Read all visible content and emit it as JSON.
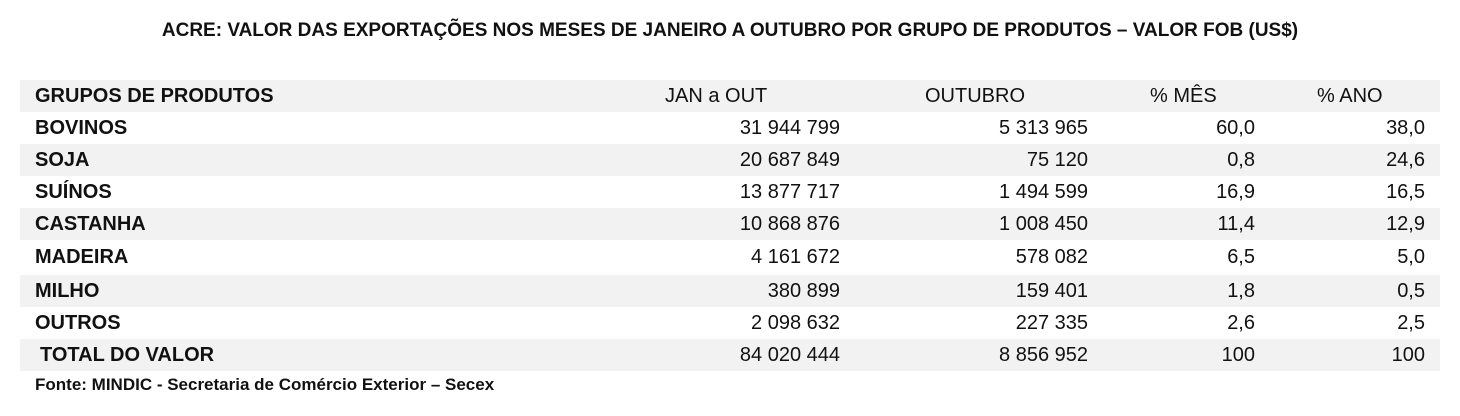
{
  "title": "ACRE: VALOR DAS EXPORTAÇÕES NOS MESES DE JANEIRO A OUTUBRO POR GRUPO DE PRODUTOS – VALOR FOB (US$)",
  "table": {
    "header": [
      "GRUPOS DE PRODUTOS",
      "JAN a OUT",
      "OUTUBRO",
      "% MÊS",
      "% ANO"
    ],
    "rows": [
      [
        "BOVINOS",
        "31 944 799",
        "5 313 965",
        "60,0",
        "38,0"
      ],
      [
        "SOJA",
        "20 687 849",
        "75 120",
        "0,8",
        "24,6"
      ],
      [
        "SUÍNOS",
        "13 877 717",
        "1 494 599",
        "16,9",
        "16,5"
      ],
      [
        "CASTANHA",
        "10 868 876",
        "1 008 450",
        "11,4",
        "12,9"
      ],
      [
        "MADEIRA",
        "4 161 672",
        "578 082",
        "6,5",
        "5,0"
      ],
      [
        "MILHO",
        "380 899",
        "159 401",
        "1,8",
        "0,5"
      ],
      [
        "OUTROS",
        "2 098 632",
        "227 335",
        "2,6",
        "2,5"
      ],
      [
        "TOTAL DO VALOR",
        "84 020 444",
        "8 856 952",
        "100",
        "100"
      ]
    ]
  },
  "source": "Fonte: MINDIC - Secretaria de Comércio Exterior – Secex"
}
